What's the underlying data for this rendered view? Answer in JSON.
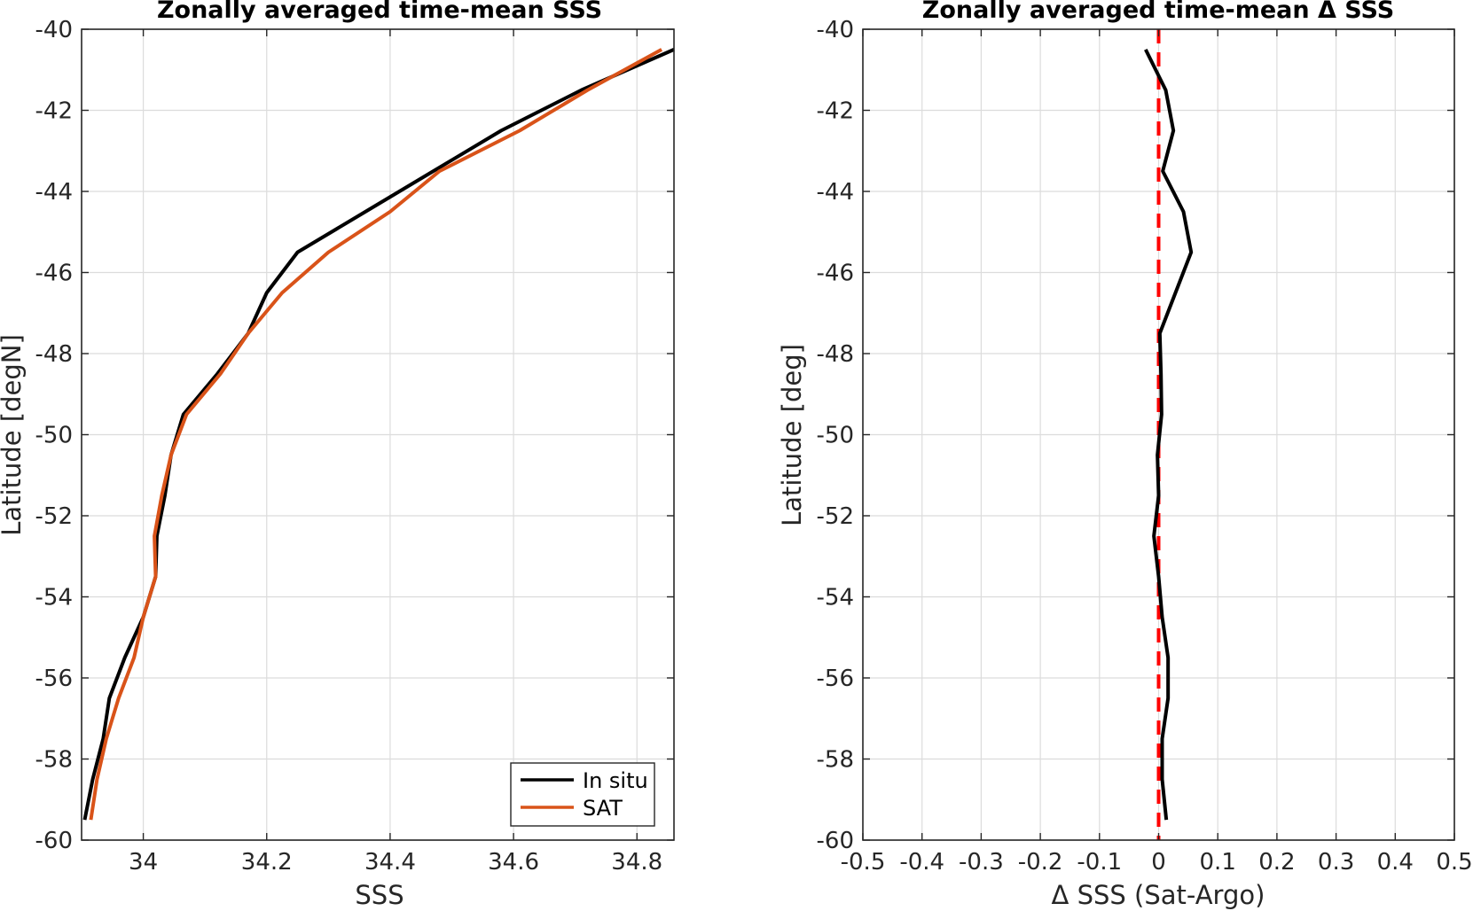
{
  "chart_data": [
    {
      "type": "line",
      "title": "Zonally averaged time-mean SSS",
      "xlabel": "SSS",
      "ylabel": "Latitude [degN]",
      "xlim": [
        33.9,
        34.86
      ],
      "ylim": [
        -60,
        -40
      ],
      "xticks": [
        34,
        34.2,
        34.4,
        34.6,
        34.8
      ],
      "yticks": [
        -40,
        -42,
        -44,
        -46,
        -48,
        -50,
        -52,
        -54,
        -56,
        -58,
        -60
      ],
      "grid": true,
      "legend": "bottom-right",
      "series": [
        {
          "name": "In situ",
          "color": "#000000",
          "x": [
            34.86,
            34.71,
            34.58,
            34.47,
            34.36,
            34.25,
            34.2,
            34.17,
            34.12,
            34.065,
            34.045,
            34.035,
            34.022,
            34.02,
            34.0,
            33.97,
            33.945,
            33.935,
            33.918,
            33.905
          ],
          "y": [
            -40.5,
            -41.5,
            -42.5,
            -43.5,
            -44.5,
            -45.5,
            -46.5,
            -47.5,
            -48.5,
            -49.5,
            -50.5,
            -51.5,
            -52.5,
            -53.5,
            -54.5,
            -55.5,
            -56.5,
            -57.5,
            -58.5,
            -59.5
          ]
        },
        {
          "name": "SAT",
          "color": "#D95319",
          "x": [
            34.84,
            34.72,
            34.61,
            34.48,
            34.4,
            34.3,
            34.225,
            34.17,
            34.125,
            34.07,
            34.045,
            34.03,
            34.018,
            34.02,
            34.0,
            33.985,
            33.96,
            33.94,
            33.925,
            33.915
          ],
          "y": [
            -40.5,
            -41.5,
            -42.5,
            -43.5,
            -44.5,
            -45.5,
            -46.5,
            -47.5,
            -48.5,
            -49.5,
            -50.5,
            -51.5,
            -52.5,
            -53.5,
            -54.5,
            -55.5,
            -56.5,
            -57.5,
            -58.5,
            -59.5
          ]
        }
      ]
    },
    {
      "type": "line",
      "title": "Zonally averaged time-mean Δ SSS",
      "xlabel": "Δ SSS (Sat-Argo)",
      "ylabel": "Latitude [deg]",
      "xlim": [
        -0.5,
        0.5
      ],
      "ylim": [
        -60,
        -40
      ],
      "xticks": [
        -0.5,
        -0.4,
        -0.3,
        -0.2,
        -0.1,
        0,
        0.1,
        0.2,
        0.3,
        0.4,
        0.5
      ],
      "xtick_labels": [
        "-0.5",
        "-0.4",
        "-0.3",
        "-0.2",
        "-0.1",
        "0",
        "0.1",
        "0.2",
        "0.3",
        "0.4",
        "0.5"
      ],
      "yticks": [
        -40,
        -42,
        -44,
        -46,
        -48,
        -50,
        -52,
        -54,
        -56,
        -58,
        -60
      ],
      "grid": true,
      "reference_line": {
        "x": 0,
        "color": "#FF0000",
        "style": "dashed"
      },
      "series": [
        {
          "color": "#000000",
          "x": [
            -0.022,
            0.012,
            0.025,
            0.007,
            0.042,
            0.055,
            0.002,
            0.004,
            0.005,
            -0.002,
            0.0,
            -0.008,
            0.0,
            0.006,
            0.016,
            0.016,
            0.006,
            0.006,
            0.013
          ],
          "y": [
            -40.5,
            -41.5,
            -42.5,
            -43.5,
            -44.5,
            -45.5,
            -47.5,
            -48.5,
            -49.5,
            -50.5,
            -51.5,
            -52.5,
            -53.5,
            -54.5,
            -55.5,
            -56.5,
            -57.5,
            -58.5,
            -59.5
          ]
        }
      ]
    }
  ]
}
